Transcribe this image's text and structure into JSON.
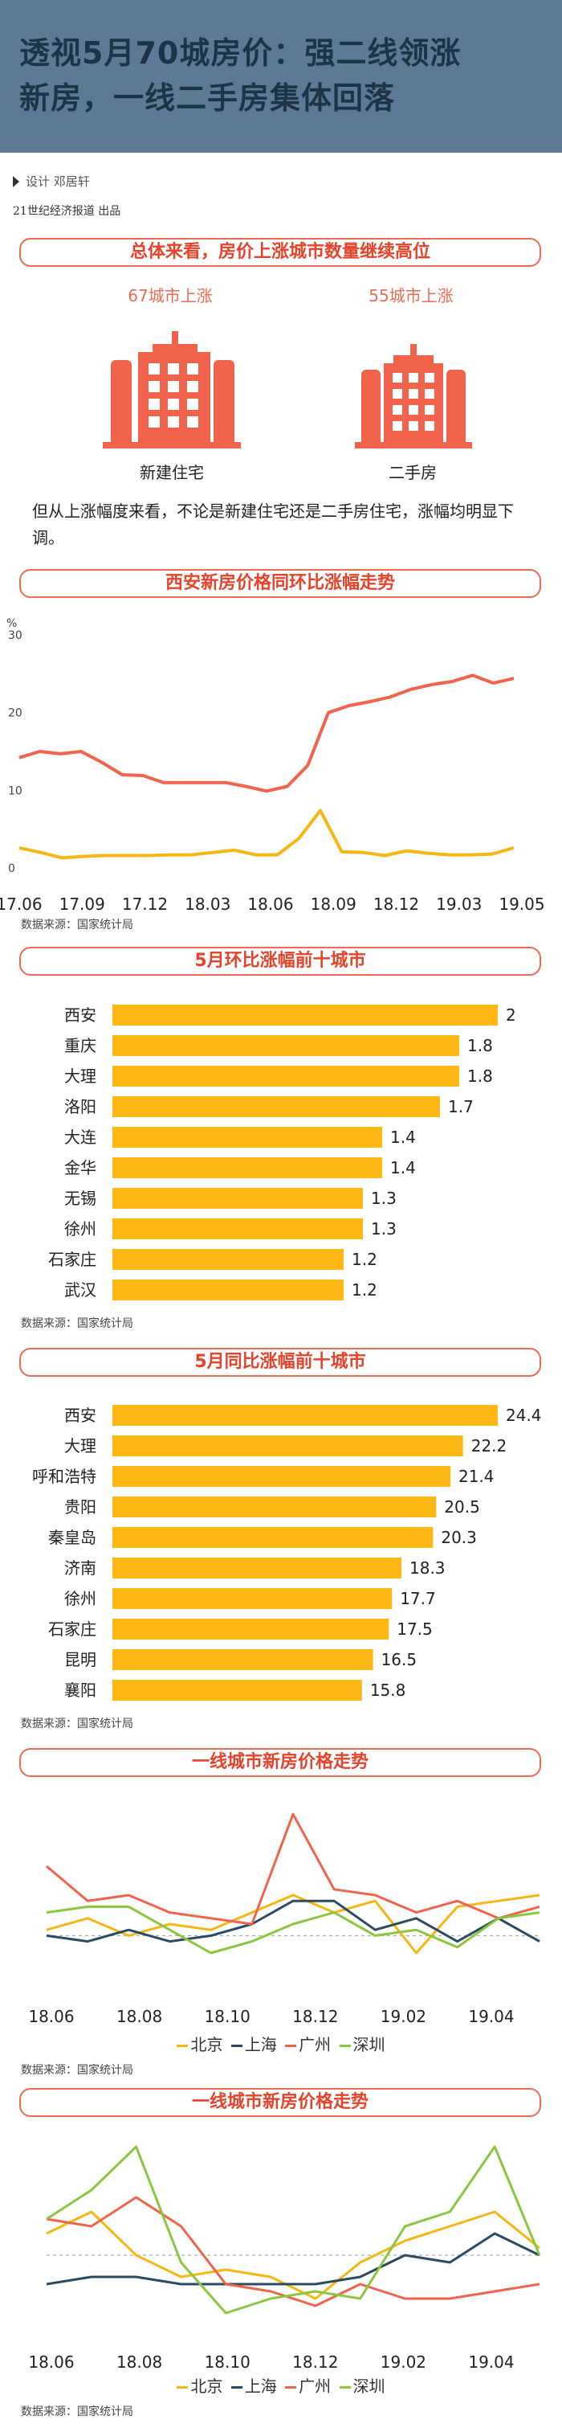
{
  "header": {
    "title_line1": "透视5月70城房价：强二线领涨",
    "title_line2": "新房，一线二手房集体回落"
  },
  "credit": {
    "text": "设计  邓居轩"
  },
  "publisher": {
    "text": "21世纪经济报道  出品"
  },
  "section1": {
    "banner": "总体来看，房价上涨城市数量继续高位",
    "new_count": "67城市上涨",
    "second_count": "55城市上涨",
    "new_label": "新建住宅",
    "second_label": "二手房",
    "note": "但从上涨幅度来看，不论是新建住宅还是二手房住宅，涨幅均明显下调。",
    "colors": {
      "icon": "#f2634b",
      "accent": "#ee6a50"
    }
  },
  "chart_data": [
    {
      "type": "line",
      "title": "西安新房价格同环比涨幅走势",
      "ylabel": "%",
      "ylim": [
        0,
        30
      ],
      "yticks": [
        "0",
        "10",
        "20",
        "30"
      ],
      "xticks": [
        "17.06",
        "17.09",
        "17.12",
        "18.03",
        "18.06",
        "18.09",
        "18.12",
        "19.03",
        "19.05"
      ],
      "series": [
        {
          "color": "#f2634b",
          "values": [
            14.2,
            15.0,
            14.7,
            15.0,
            13.6,
            12.0,
            11.9,
            11.0,
            11.0,
            11.0,
            11.0,
            10.5,
            9.9,
            10.5,
            13.2,
            20.0,
            20.9,
            21.4,
            22.0,
            23.0,
            23.6,
            24.0,
            24.8,
            23.8,
            24.4
          ]
        },
        {
          "color": "#f7b613",
          "values": [
            2.6,
            2.0,
            1.3,
            1.5,
            1.6,
            1.6,
            1.6,
            1.7,
            1.7,
            2.0,
            2.3,
            1.7,
            1.7,
            3.8,
            7.4,
            2.1,
            2.0,
            1.6,
            2.2,
            1.9,
            1.7,
            1.7,
            1.8,
            2.6
          ]
        }
      ],
      "source": "数据来源：国家统计局"
    },
    {
      "type": "bar",
      "orientation": "horizontal",
      "title": "5月环比涨幅前十城市",
      "categories": [
        "西安",
        "重庆",
        "大理",
        "洛阳",
        "大连",
        "金华",
        "无锡",
        "徐州",
        "石家庄",
        "武汉"
      ],
      "values": [
        2,
        1.8,
        1.8,
        1.7,
        1.4,
        1.4,
        1.3,
        1.3,
        1.2,
        1.2
      ],
      "labels": [
        "2",
        "1.8",
        "1.8",
        "1.7",
        "1.4",
        "1.4",
        "1.3",
        "1.3",
        "1.2",
        "1.2"
      ],
      "color": "#fdb813",
      "source": "数据来源：国家统计局"
    },
    {
      "type": "bar",
      "orientation": "horizontal",
      "title": "5月同比涨幅前十城市",
      "categories": [
        "西安",
        "大理",
        "呼和浩特",
        "贵阳",
        "秦皇岛",
        "济南",
        "徐州",
        "石家庄",
        "昆明",
        "襄阳"
      ],
      "values": [
        24.4,
        22.2,
        21.4,
        20.5,
        20.3,
        18.3,
        17.7,
        17.5,
        16.5,
        15.8
      ],
      "labels": [
        "24.4",
        "22.2",
        "21.4",
        "20.5",
        "20.3",
        "18.3",
        "17.7",
        "17.5",
        "16.5",
        "15.8"
      ],
      "color": "#fdb813",
      "source": "数据来源：国家统计局"
    },
    {
      "type": "line",
      "title": "一线城市新房价格走势",
      "xticks": [
        "18.06",
        "18.08",
        "18.10",
        "18.12",
        "19.02",
        "19.04"
      ],
      "ylim": [
        -0.8,
        2.2
      ],
      "zero_line": true,
      "legend": [
        "北京",
        "上海",
        "广州",
        "深圳"
      ],
      "series": [
        {
          "name": "北京",
          "color": "#f7b613",
          "values": [
            0.1,
            0.3,
            0.0,
            0.2,
            0.1,
            0.4,
            0.7,
            0.4,
            0.6,
            -0.3,
            0.5,
            0.6,
            0.7
          ]
        },
        {
          "name": "上海",
          "color": "#2c4a63",
          "values": [
            0.0,
            -0.1,
            0.1,
            -0.1,
            0.0,
            0.2,
            0.6,
            0.6,
            0.1,
            0.3,
            -0.1,
            0.3,
            -0.1
          ]
        },
        {
          "name": "广州",
          "color": "#f2634b",
          "values": [
            1.2,
            0.6,
            0.7,
            0.4,
            0.3,
            0.2,
            2.1,
            0.8,
            0.7,
            0.4,
            0.6,
            0.3,
            0.5
          ]
        },
        {
          "name": "深圳",
          "color": "#8cc63f",
          "values": [
            0.4,
            0.5,
            0.5,
            0.1,
            -0.3,
            -0.1,
            0.2,
            0.4,
            0.0,
            0.1,
            -0.2,
            0.3,
            0.4
          ]
        }
      ],
      "source": "数据来源：国家统计局"
    },
    {
      "type": "line",
      "title": "一线城市新房价格走势",
      "xticks": [
        "18.06",
        "18.08",
        "18.10",
        "18.12",
        "19.02",
        "19.04"
      ],
      "ylim": [
        -1.0,
        1.6
      ],
      "zero_line": true,
      "legend": [
        "北京",
        "上海",
        "广州",
        "深圳"
      ],
      "series": [
        {
          "name": "北京",
          "color": "#f7b613",
          "values": [
            0.3,
            0.6,
            0.0,
            -0.3,
            -0.2,
            -0.3,
            -0.6,
            -0.1,
            0.2,
            0.4,
            0.6,
            0.1
          ]
        },
        {
          "name": "上海",
          "color": "#2c4a63",
          "values": [
            -0.4,
            -0.3,
            -0.3,
            -0.4,
            -0.4,
            -0.4,
            -0.4,
            -0.3,
            0.0,
            -0.1,
            0.3,
            0.0
          ]
        },
        {
          "name": "广州",
          "color": "#f2634b",
          "values": [
            0.5,
            0.4,
            0.8,
            0.4,
            -0.4,
            -0.5,
            -0.7,
            -0.4,
            -0.6,
            -0.6,
            -0.5,
            -0.4
          ]
        },
        {
          "name": "深圳",
          "color": "#8cc63f",
          "values": [
            0.5,
            0.9,
            1.5,
            -0.1,
            -0.8,
            -0.6,
            -0.5,
            -0.6,
            0.4,
            0.6,
            1.5,
            0.0
          ]
        }
      ],
      "source": "数据来源：国家统计局"
    }
  ]
}
